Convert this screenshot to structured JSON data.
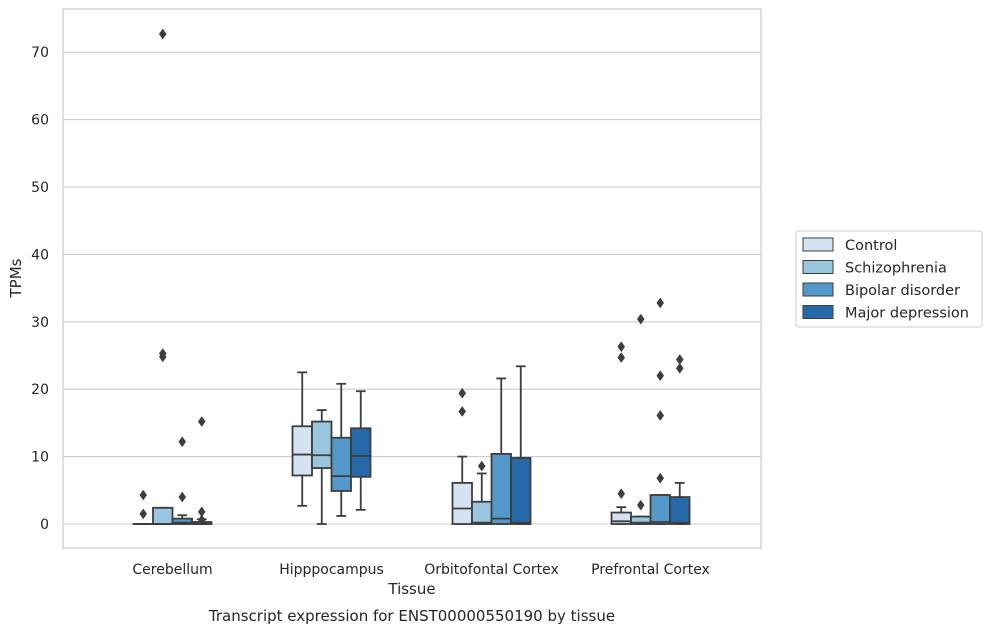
{
  "chart_data": {
    "type": "box",
    "title": "Transcript expression for ENST00000550190 by tissue",
    "xlabel": "Tissue",
    "ylabel": "TPMs",
    "ylim": [
      -3.5,
      76
    ],
    "yticks": [
      0,
      10,
      20,
      30,
      40,
      50,
      60,
      70
    ],
    "grid": "horizontal",
    "legend_position": "right",
    "categories": [
      "Cerebellum",
      "Hipppocampus",
      "Orbitofontal Cortex",
      "Prefrontal Cortex"
    ],
    "series": [
      {
        "name": "Control",
        "color": "#d4e3f2",
        "boxes": [
          {
            "q1": 0,
            "median": 0,
            "q3": 0,
            "whislo": 0,
            "whishi": 0,
            "fliers": [
              4.3,
              1.5
            ]
          },
          {
            "q1": 7.2,
            "median": 10.3,
            "q3": 14.5,
            "whislo": 2.7,
            "whishi": 22.5,
            "fliers": []
          },
          {
            "q1": 0,
            "median": 2.3,
            "q3": 6.1,
            "whislo": 0,
            "whishi": 10,
            "fliers": [
              19.4,
              16.7
            ]
          },
          {
            "q1": 0,
            "median": 0.4,
            "q3": 1.7,
            "whislo": 0,
            "whishi": 2.5,
            "fliers": [
              26.3,
              24.7,
              4.5
            ]
          }
        ]
      },
      {
        "name": "Schizophrenia",
        "color": "#9ac5df",
        "boxes": [
          {
            "q1": 0,
            "median": 0,
            "q3": 2.4,
            "whislo": 0,
            "whishi": 2.4,
            "fliers": [
              72.7,
              25.3,
              24.8
            ]
          },
          {
            "q1": 8.3,
            "median": 10.2,
            "q3": 15.2,
            "whislo": 0,
            "whishi": 16.9,
            "fliers": []
          },
          {
            "q1": 0,
            "median": 0.2,
            "q3": 3.3,
            "whislo": 0,
            "whishi": 7.5,
            "fliers": [
              8.6
            ]
          },
          {
            "q1": 0,
            "median": 0.2,
            "q3": 1.1,
            "whislo": 0,
            "whishi": 1.1,
            "fliers": [
              30.4,
              2.8
            ]
          }
        ]
      },
      {
        "name": "Bipolar disorder",
        "color": "#5497c9",
        "boxes": [
          {
            "q1": 0,
            "median": 0.2,
            "q3": 0.8,
            "whislo": 0,
            "whishi": 1.3,
            "fliers": [
              12.2,
              4.0
            ]
          },
          {
            "q1": 4.9,
            "median": 7.1,
            "q3": 12.8,
            "whislo": 1.2,
            "whishi": 20.8,
            "fliers": []
          },
          {
            "q1": 0,
            "median": 0.8,
            "q3": 10.4,
            "whislo": 0,
            "whishi": 21.6,
            "fliers": []
          },
          {
            "q1": 0,
            "median": 0.3,
            "q3": 4.3,
            "whislo": 0,
            "whishi": 4.3,
            "fliers": [
              6.8,
              16.1,
              22.0,
              32.8
            ]
          }
        ]
      },
      {
        "name": "Major depression",
        "color": "#2669a8",
        "boxes": [
          {
            "q1": 0,
            "median": 0,
            "q3": 0.3,
            "whislo": 0,
            "whishi": 0.7,
            "fliers": [
              15.2,
              1.8,
              0.6
            ]
          },
          {
            "q1": 7.0,
            "median": 10.1,
            "q3": 14.2,
            "whislo": 2.1,
            "whishi": 19.7,
            "fliers": []
          },
          {
            "q1": 0,
            "median": 0.2,
            "q3": 9.8,
            "whislo": 0,
            "whishi": 23.4,
            "fliers": []
          },
          {
            "q1": 0,
            "median": 0.2,
            "q3": 4.0,
            "whislo": 0,
            "whishi": 6.1,
            "fliers": [
              24.4,
              23.1
            ]
          }
        ]
      }
    ]
  }
}
